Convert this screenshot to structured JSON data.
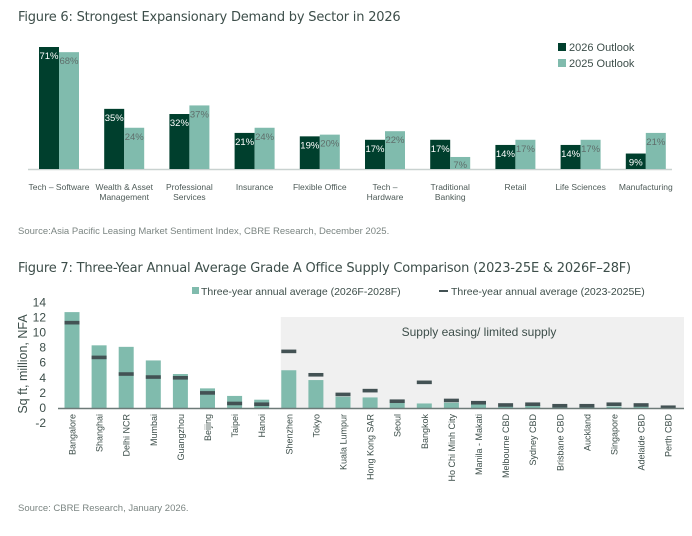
{
  "figure6": {
    "title": "Figure 6: Strongest Expansionary Demand by Sector in 2026",
    "source": "Source:Asia Pacific Leasing Market Sentiment Index, CBRE Research, December 2025."
  },
  "figure7": {
    "title": "Figure 7: Three-Year Annual Average Grade A Office Supply Comparison (2023-25E & 2026F–28F)",
    "source": "Source: CBRE Research, January 2026.",
    "shaded_region_label": "Supply easing/ limited supply"
  },
  "colors": {
    "dark_green": "#003f2d",
    "light_green": "#80bbad",
    "dash_gray": "#435254",
    "shade": "#f0f0f0",
    "axis": "#6d7a78"
  },
  "chart_data": [
    {
      "type": "bar",
      "title": "Figure 6: Strongest Expansionary Demand by Sector in 2026",
      "categories": [
        "Tech – Software",
        "Wealth & Asset Management",
        "Professional Services",
        "Insurance",
        "Flexible Office",
        "Tech – Hardware",
        "Traditional Banking",
        "Retail",
        "Life Sciences",
        "Manufacturing"
      ],
      "category_lines": [
        [
          "Tech – Software"
        ],
        [
          "Wealth & Asset",
          "Management"
        ],
        [
          "Professional",
          "Services"
        ],
        [
          "Insurance"
        ],
        [
          "Flexible Office"
        ],
        [
          "Tech –",
          "Hardware"
        ],
        [
          "Traditional",
          "Banking"
        ],
        [
          "Retail"
        ],
        [
          "Life Sciences"
        ],
        [
          "Manufacturing"
        ]
      ],
      "series": [
        {
          "name": "2026 Outlook",
          "values": [
            71,
            35,
            32,
            21,
            19,
            17,
            17,
            14,
            14,
            9
          ]
        },
        {
          "name": "2025 Outlook",
          "values": [
            68,
            24,
            37,
            24,
            20,
            22,
            7,
            17,
            17,
            21
          ]
        }
      ],
      "unit": "%",
      "xlabel": "",
      "ylabel": "",
      "ylim": [
        0,
        75
      ],
      "grid": false,
      "legend": "top-right"
    },
    {
      "type": "bar",
      "title": "Figure 7: Three-Year Annual Average Grade A Office Supply Comparison (2023-25E & 2026F–28F)",
      "categories": [
        "Bangalore",
        "Shanghai",
        "Delhi NCR",
        "Mumbai",
        "Guangzhou",
        "Beijing",
        "Taipei",
        "Hanoi",
        "Shenzhen",
        "Tokyo",
        "Kuala Lumpur",
        "Hong Kong SAR",
        "Seoul",
        "Bangkok",
        "Ho Chi Minh City",
        "Manila - Makati",
        "Melbourne CBD",
        "Sydney CBD",
        "Brisbane CBD",
        "Auckland",
        "Singapore",
        "Adelaide CBD",
        "Perth CBD"
      ],
      "series": [
        {
          "name": "Three-year annual average (2026F-2028F)",
          "style": "bar",
          "values": [
            12.7,
            8.3,
            8.1,
            6.3,
            4.5,
            2.6,
            1.6,
            1.1,
            5.0,
            3.7,
            1.5,
            1.4,
            1.1,
            0.6,
            0.7,
            0.5,
            0.2,
            0.4,
            0.2,
            0.2,
            0.2,
            0.2,
            0.0
          ]
        },
        {
          "name": "Three-year annual average (2023-2025E)",
          "style": "dash",
          "values": [
            11.3,
            6.7,
            4.5,
            4.1,
            4.0,
            2.0,
            0.6,
            0.5,
            7.5,
            4.4,
            1.8,
            2.3,
            0.9,
            3.4,
            1.0,
            0.7,
            0.4,
            0.5,
            0.3,
            0.3,
            0.5,
            0.4,
            0.1
          ]
        }
      ],
      "shaded_from_category": "Shenzhen",
      "shaded_label": "Supply easing/ limited supply",
      "xlabel": "",
      "ylabel": "Sq ft, million, NFA",
      "ylim": [
        -2,
        14
      ],
      "yticks": [
        14,
        12,
        10,
        8,
        6,
        4,
        2,
        0,
        -2
      ],
      "grid": false,
      "legend": "top"
    }
  ]
}
